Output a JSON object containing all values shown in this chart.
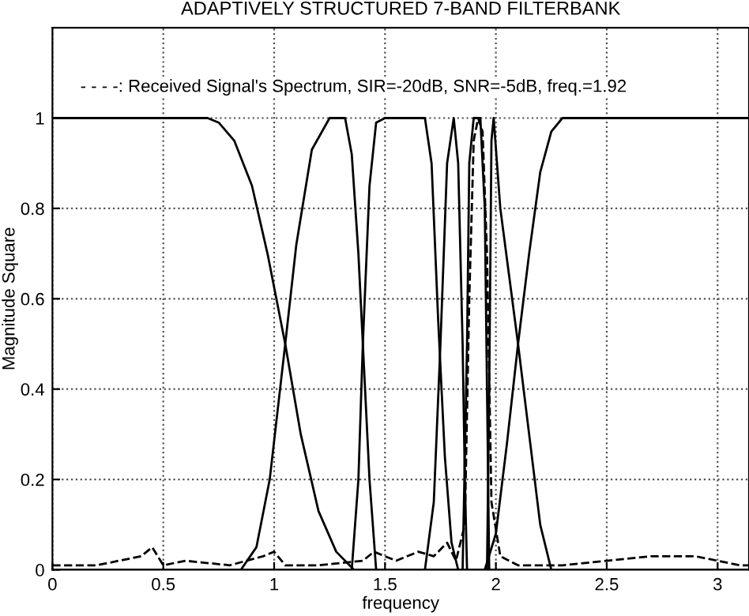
{
  "chart_data": {
    "type": "line",
    "title": "ADAPTIVELY STRUCTURED 7-BAND FILTERBANK",
    "xlabel": "frequency",
    "ylabel": "Magnitude Square",
    "annotations": [
      "- - - -: Received Signal's Spectrum, SIR=-20dB, SNR=-5dB, freq.=1.92"
    ],
    "xlim": [
      0,
      3.1416
    ],
    "ylim": [
      0,
      1.2
    ],
    "xticks": [
      0,
      0.5,
      1,
      1.5,
      2,
      2.5,
      3
    ],
    "yticks": [
      0,
      0.2,
      0.4,
      0.6,
      0.8,
      1
    ],
    "grid": true,
    "marker": "none",
    "line_style": "solid",
    "series": [
      {
        "color": "#000000",
        "x": [
          0,
          0.7,
          0.75,
          0.82,
          0.9,
          0.97,
          1.05,
          1.12,
          1.2,
          1.28,
          1.36,
          3.1416
        ],
        "values": [
          1,
          1,
          0.99,
          0.95,
          0.85,
          0.7,
          0.5,
          0.3,
          0.13,
          0.04,
          0,
          0
        ]
      },
      {
        "color": "#000000",
        "x": [
          0,
          0.85,
          0.92,
          0.98,
          1.05,
          1.1,
          1.17,
          1.25,
          1.32,
          1.35,
          1.38,
          1.4,
          1.43,
          1.46,
          3.1416
        ],
        "values": [
          0,
          0,
          0.05,
          0.2,
          0.5,
          0.72,
          0.93,
          1,
          1,
          0.92,
          0.7,
          0.5,
          0.2,
          0,
          0
        ]
      },
      {
        "color": "#000000",
        "x": [
          0,
          1.35,
          1.38,
          1.4,
          1.43,
          1.46,
          1.5,
          1.68,
          1.71,
          1.74,
          1.77,
          1.8,
          1.83,
          3.1416
        ],
        "values": [
          0,
          0,
          0.2,
          0.5,
          0.85,
          0.99,
          1,
          1,
          0.9,
          0.55,
          0.25,
          0.06,
          0,
          0
        ]
      },
      {
        "color": "#000000",
        "x": [
          0,
          1.68,
          1.72,
          1.75,
          1.78,
          1.81,
          1.83,
          1.85,
          1.86,
          1.87,
          3.1416
        ],
        "values": [
          0,
          0,
          0.15,
          0.5,
          0.9,
          1,
          0.9,
          0.5,
          0.2,
          0,
          0
        ]
      },
      {
        "color": "#000000",
        "x": [
          0,
          1.85,
          1.87,
          1.88,
          1.9,
          1.93,
          1.95,
          1.96,
          1.97,
          3.1416
        ],
        "values": [
          0,
          0,
          0.5,
          0.9,
          1,
          1,
          0.8,
          0.4,
          0,
          0
        ]
      },
      {
        "color": "#000000",
        "x": [
          0,
          1.96,
          1.97,
          1.98,
          1.99,
          2.02,
          2.06,
          2.1,
          2.15,
          2.2,
          2.25,
          3.1416
        ],
        "values": [
          0,
          0,
          0.4,
          0.95,
          1,
          0.8,
          0.65,
          0.5,
          0.3,
          0.1,
          0,
          0
        ]
      },
      {
        "color": "#000000",
        "x": [
          0,
          1.95,
          2.0,
          2.05,
          2.1,
          2.15,
          2.2,
          2.25,
          2.3,
          2.4,
          3.1416
        ],
        "values": [
          0,
          0,
          0.08,
          0.28,
          0.5,
          0.7,
          0.88,
          0.97,
          1,
          1,
          1
        ]
      },
      {
        "color": "#000000",
        "line_style": "dashed",
        "x": [
          0,
          0.2,
          0.3,
          0.4,
          0.45,
          0.5,
          0.6,
          0.8,
          0.95,
          1.0,
          1.05,
          1.2,
          1.4,
          1.45,
          1.55,
          1.65,
          1.72,
          1.78,
          1.82,
          1.86,
          1.88,
          1.9,
          1.92,
          1.94,
          1.96,
          1.98,
          2.02,
          2.1,
          2.3,
          2.5,
          2.7,
          2.9,
          3.0,
          3.1,
          3.1416
        ],
        "values": [
          0.01,
          0.01,
          0.02,
          0.03,
          0.05,
          0.01,
          0.02,
          0.01,
          0.03,
          0.04,
          0.01,
          0.01,
          0.02,
          0.04,
          0.02,
          0.04,
          0.03,
          0.06,
          0.02,
          0.1,
          0.6,
          0.95,
          1,
          0.97,
          0.7,
          0.15,
          0.03,
          0.01,
          0.01,
          0.02,
          0.03,
          0.03,
          0.02,
          0.01,
          0.01
        ]
      }
    ]
  }
}
